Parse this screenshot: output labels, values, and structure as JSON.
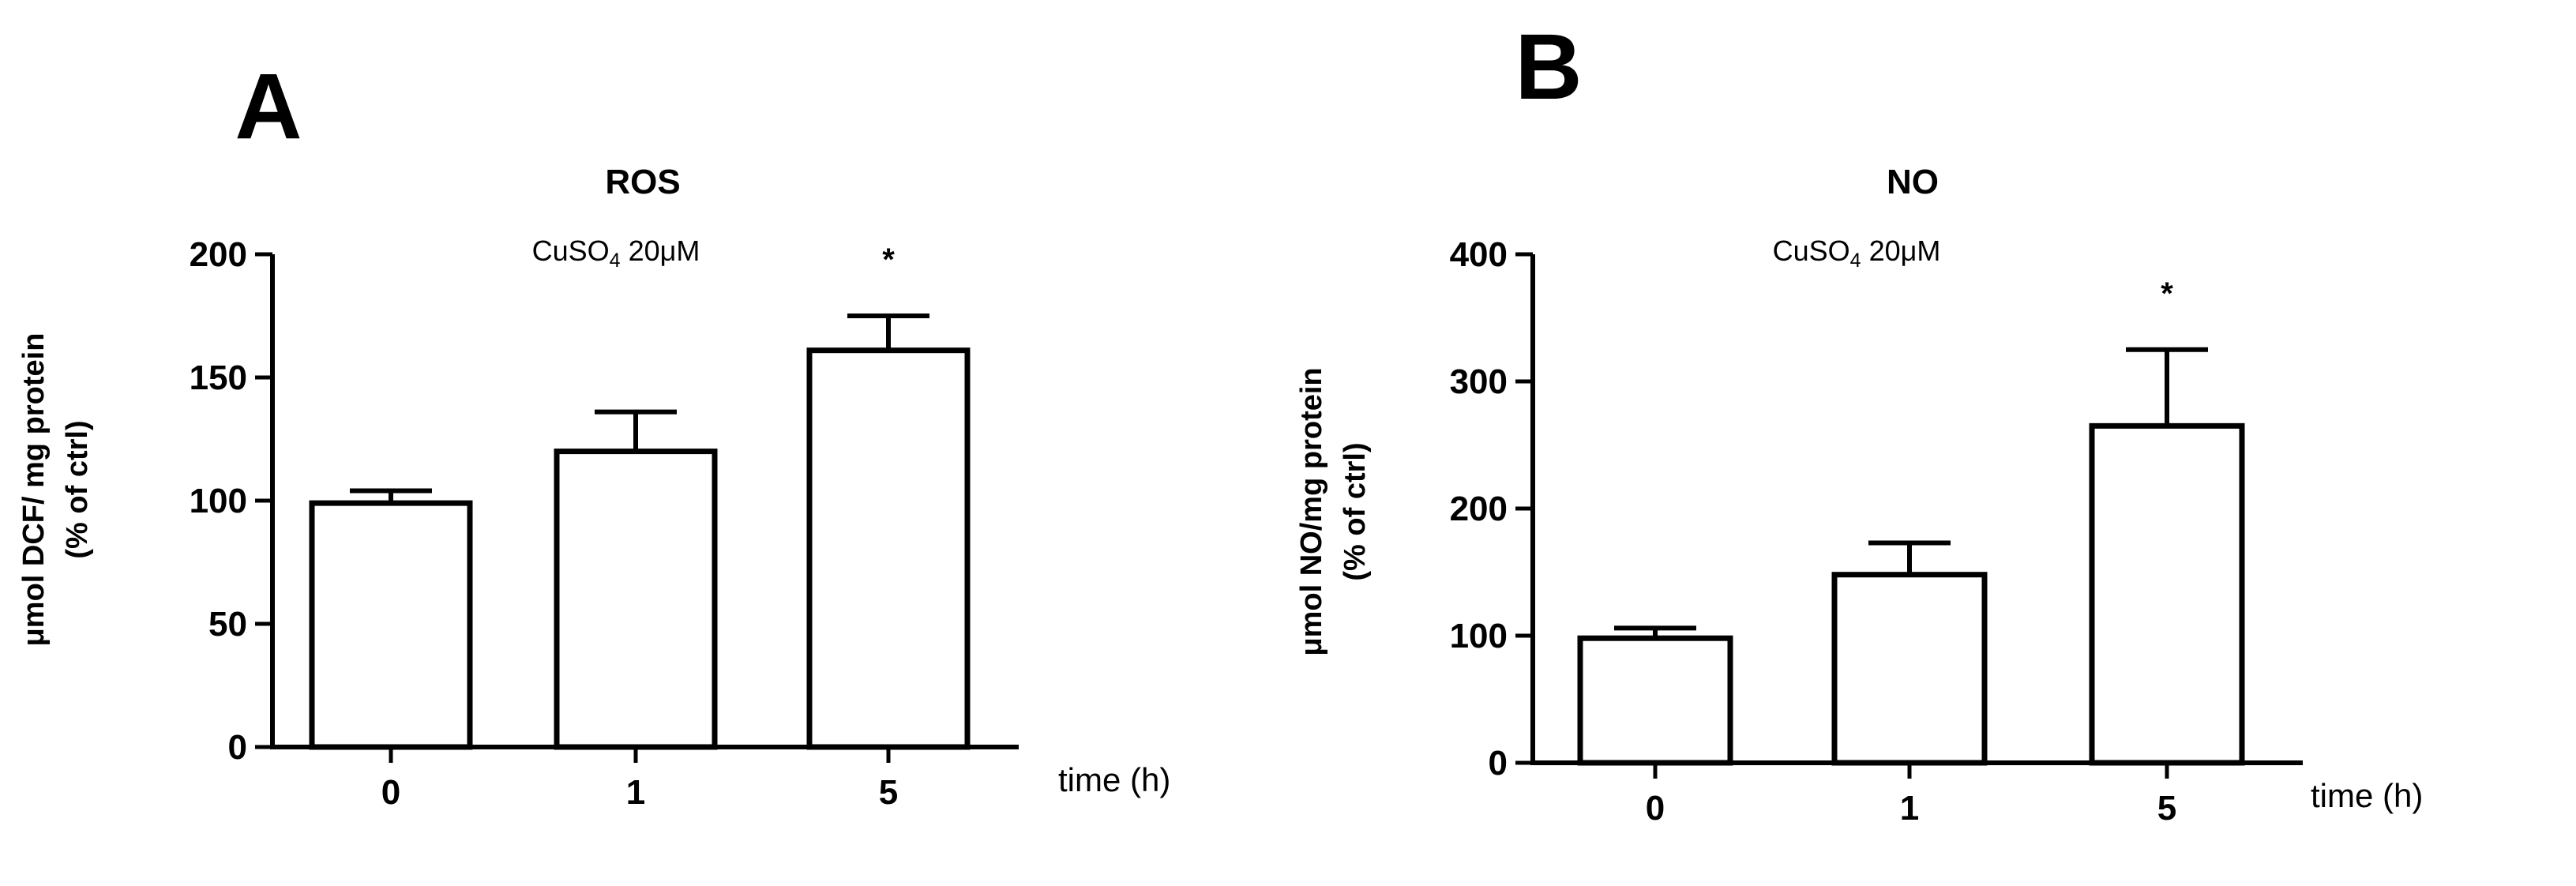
{
  "chart_data": [
    {
      "type": "bar",
      "panel_label": "A",
      "title": "ROS",
      "annotation": {
        "prefix": "CuSO",
        "subscript": "4",
        "suffix": " 20μM"
      },
      "ylabel_lines": [
        "μmol DCF/ mg protein",
        "(% of ctrl)"
      ],
      "xlabel": "time (h)",
      "categories": [
        "0",
        "1",
        "5"
      ],
      "values": [
        99,
        120,
        161
      ],
      "errors": [
        5,
        16,
        14
      ],
      "significance": [
        "",
        "",
        "*"
      ],
      "ylim": [
        0,
        200
      ],
      "yticks": [
        0,
        50,
        100,
        150,
        200
      ],
      "bar_fill": "#ffffff",
      "bar_stroke": "#000000",
      "grid": false,
      "legend": "none"
    },
    {
      "type": "bar",
      "panel_label": "B",
      "title": "NO",
      "annotation": {
        "prefix": "CuSO",
        "subscript": "4",
        "suffix": " 20μM"
      },
      "ylabel_lines": [
        "μmol NO/mg protein",
        "(% of ctrl)"
      ],
      "xlabel": "time (h)",
      "categories": [
        "0",
        "1",
        "5"
      ],
      "values": [
        98,
        148,
        265
      ],
      "errors": [
        8,
        25,
        60
      ],
      "significance": [
        "",
        "",
        "*"
      ],
      "ylim": [
        0,
        400
      ],
      "yticks": [
        0,
        100,
        200,
        300,
        400
      ],
      "bar_fill": "#ffffff",
      "bar_stroke": "#000000",
      "grid": false,
      "legend": "none"
    }
  ]
}
